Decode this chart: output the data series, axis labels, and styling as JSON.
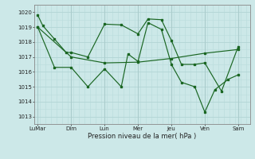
{
  "title": "Pression niveau de la mer( hPa )",
  "bg_color": "#cce8e8",
  "grid_color_major": "#aacccc",
  "grid_color_minor": "#bbdddd",
  "line_color": "#1a6622",
  "ylim": [
    1012.5,
    1020.5
  ],
  "yticks": [
    1013,
    1014,
    1015,
    1016,
    1017,
    1018,
    1019,
    1020
  ],
  "x_labels": [
    "LuMar",
    "Dim",
    "Lun",
    "Mer",
    "Jeu",
    "Ven",
    "Sam"
  ],
  "x_positions": [
    0,
    1,
    2,
    3,
    4,
    5,
    6
  ],
  "s1_x": [
    0,
    0.15,
    0.5,
    0.85,
    1.0,
    1.5,
    2.0,
    2.5,
    3.0,
    3.3,
    3.7,
    4.0,
    4.3,
    4.7,
    5.0,
    5.5,
    6.0
  ],
  "s1_y": [
    1019.8,
    1019.1,
    1018.2,
    1017.3,
    1017.3,
    1017.0,
    1019.2,
    1019.15,
    1018.55,
    1019.55,
    1019.5,
    1018.1,
    1016.5,
    1016.5,
    1016.6,
    1014.7,
    1017.7
  ],
  "s2_x": [
    0,
    0.5,
    1.0,
    1.5,
    2.0,
    2.5,
    2.7,
    3.0,
    3.3,
    3.7,
    4.0,
    4.3,
    4.7,
    5.0,
    5.3,
    5.7,
    6.0
  ],
  "s2_y": [
    1019.0,
    1016.3,
    1016.3,
    1015.0,
    1016.2,
    1015.0,
    1017.2,
    1016.7,
    1019.3,
    1018.85,
    1016.5,
    1015.3,
    1015.0,
    1013.3,
    1014.8,
    1015.5,
    1015.8
  ],
  "s3_x": [
    0,
    1,
    2,
    3,
    4,
    5,
    6
  ],
  "s3_y": [
    1019.0,
    1017.0,
    1016.6,
    1016.65,
    1016.9,
    1017.25,
    1017.5
  ]
}
